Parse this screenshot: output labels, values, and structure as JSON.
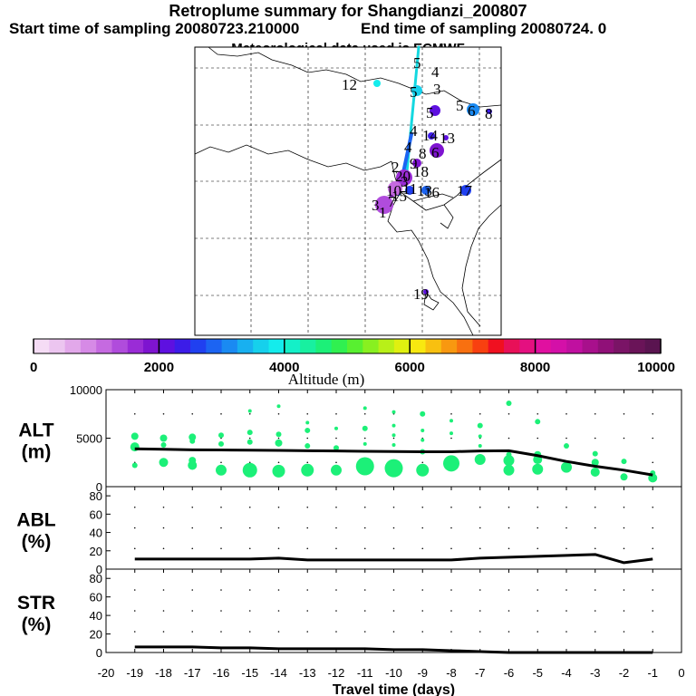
{
  "header": {
    "title": "Retroplume summary for Shangdianzi_200807",
    "start_label": "Start time of sampling 20080723.210000",
    "end_label": "End time of sampling 20080724.      0",
    "met_label": "Meteorological data used is ECMWF"
  },
  "colorbar": {
    "label": "Altitude (m)",
    "ticks": [
      "0",
      "2000",
      "4000",
      "6000",
      "8000",
      "10000"
    ],
    "colors": [
      "#f5dcf5",
      "#ecc5f0",
      "#e2a8ea",
      "#d68ae6",
      "#c56ae0",
      "#b04cdc",
      "#9a2cd6",
      "#7e14d0",
      "#5e10e0",
      "#3c1ce8",
      "#2040f0",
      "#1c64f2",
      "#1a8af2",
      "#18b0f0",
      "#16d0ec",
      "#14ecec",
      "#14f0c8",
      "#18f0a0",
      "#1cf078",
      "#30f050",
      "#58f030",
      "#88f020",
      "#b8f018",
      "#e0f010",
      "#f8e810",
      "#f8c010",
      "#f89810",
      "#f87010",
      "#f84010",
      "#f01020",
      "#e81058",
      "#e41080",
      "#e010a0",
      "#d410a8",
      "#c010a0",
      "#a8108c",
      "#901078",
      "#7a1466",
      "#6a1458",
      "#5a1450"
    ]
  },
  "map": {
    "labels": [
      "12",
      "5",
      "4",
      "5",
      "3",
      "5",
      "6",
      "8",
      "5",
      "4",
      "14",
      "13",
      "4",
      "8",
      "6",
      "9",
      "2",
      "20",
      "18",
      "3",
      "17",
      "10",
      "11",
      "13",
      "15",
      "16",
      "7",
      "1",
      "3",
      "19"
    ]
  },
  "chart_data": [
    {
      "type": "line",
      "name": "ALT",
      "ylabel": "ALT\n(m)",
      "title_lines": [
        "ALT",
        "(m)"
      ],
      "x": [
        -19,
        -18,
        -17,
        -16,
        -15,
        -14,
        -13,
        -12,
        -11,
        -10,
        -9,
        -8,
        -7,
        -6,
        -5,
        -4,
        -3,
        -2,
        -1
      ],
      "values": [
        3900,
        3850,
        3800,
        3780,
        3760,
        3740,
        3700,
        3680,
        3650,
        3620,
        3600,
        3600,
        3680,
        3700,
        3200,
        2600,
        2100,
        1700,
        1200
      ],
      "ylim": [
        0,
        10000
      ],
      "yticks": [
        "0",
        "5000",
        "10000"
      ],
      "scatter": [
        {
          "x": -19,
          "y": 5200,
          "r": 4
        },
        {
          "x": -19,
          "y": 4100,
          "r": 5
        },
        {
          "x": -19,
          "y": 2200,
          "r": 3
        },
        {
          "x": -18,
          "y": 5000,
          "r": 4
        },
        {
          "x": -18,
          "y": 4300,
          "r": 3
        },
        {
          "x": -18,
          "y": 2500,
          "r": 5
        },
        {
          "x": -17,
          "y": 5100,
          "r": 4
        },
        {
          "x": -17,
          "y": 4700,
          "r": 3
        },
        {
          "x": -17,
          "y": 2700,
          "r": 4
        },
        {
          "x": -17,
          "y": 2200,
          "r": 5
        },
        {
          "x": -16,
          "y": 5300,
          "r": 3
        },
        {
          "x": -16,
          "y": 4400,
          "r": 3
        },
        {
          "x": -16,
          "y": 1700,
          "r": 6
        },
        {
          "x": -15,
          "y": 7800,
          "r": 2
        },
        {
          "x": -15,
          "y": 5600,
          "r": 3
        },
        {
          "x": -15,
          "y": 4600,
          "r": 3
        },
        {
          "x": -15,
          "y": 1700,
          "r": 8
        },
        {
          "x": -14,
          "y": 8300,
          "r": 2
        },
        {
          "x": -14,
          "y": 5400,
          "r": 3
        },
        {
          "x": -14,
          "y": 4500,
          "r": 4
        },
        {
          "x": -14,
          "y": 1600,
          "r": 7
        },
        {
          "x": -13,
          "y": 6600,
          "r": 2
        },
        {
          "x": -13,
          "y": 5800,
          "r": 3
        },
        {
          "x": -13,
          "y": 4200,
          "r": 3
        },
        {
          "x": -13,
          "y": 1700,
          "r": 7
        },
        {
          "x": -12,
          "y": 6000,
          "r": 2
        },
        {
          "x": -12,
          "y": 4000,
          "r": 3
        },
        {
          "x": -12,
          "y": 1700,
          "r": 6
        },
        {
          "x": -11,
          "y": 8100,
          "r": 2
        },
        {
          "x": -11,
          "y": 6000,
          "r": 3
        },
        {
          "x": -11,
          "y": 4400,
          "r": 2
        },
        {
          "x": -11,
          "y": 2100,
          "r": 10
        },
        {
          "x": -10,
          "y": 7700,
          "r": 2
        },
        {
          "x": -10,
          "y": 6300,
          "r": 2
        },
        {
          "x": -10,
          "y": 5300,
          "r": 2
        },
        {
          "x": -10,
          "y": 4300,
          "r": 2
        },
        {
          "x": -10,
          "y": 1900,
          "r": 10
        },
        {
          "x": -9,
          "y": 7500,
          "r": 3
        },
        {
          "x": -9,
          "y": 5800,
          "r": 2
        },
        {
          "x": -9,
          "y": 4800,
          "r": 2
        },
        {
          "x": -9,
          "y": 3600,
          "r": 3
        },
        {
          "x": -9,
          "y": 1700,
          "r": 7
        },
        {
          "x": -8,
          "y": 6800,
          "r": 2
        },
        {
          "x": -8,
          "y": 5500,
          "r": 2
        },
        {
          "x": -8,
          "y": 2400,
          "r": 9
        },
        {
          "x": -7,
          "y": 6300,
          "r": 3
        },
        {
          "x": -7,
          "y": 5200,
          "r": 2
        },
        {
          "x": -7,
          "y": 4200,
          "r": 2
        },
        {
          "x": -7,
          "y": 2800,
          "r": 6
        },
        {
          "x": -6,
          "y": 8600,
          "r": 3
        },
        {
          "x": -6,
          "y": 3300,
          "r": 3
        },
        {
          "x": -6,
          "y": 2700,
          "r": 6
        },
        {
          "x": -6,
          "y": 1700,
          "r": 6
        },
        {
          "x": -5,
          "y": 6700,
          "r": 3
        },
        {
          "x": -5,
          "y": 3300,
          "r": 4
        },
        {
          "x": -5,
          "y": 2800,
          "r": 5
        },
        {
          "x": -5,
          "y": 1800,
          "r": 6
        },
        {
          "x": -4,
          "y": 4200,
          "r": 3
        },
        {
          "x": -4,
          "y": 2000,
          "r": 6
        },
        {
          "x": -3,
          "y": 3400,
          "r": 3
        },
        {
          "x": -3,
          "y": 2500,
          "r": 4
        },
        {
          "x": -3,
          "y": 1500,
          "r": 5
        },
        {
          "x": -2,
          "y": 2600,
          "r": 3
        },
        {
          "x": -2,
          "y": 1000,
          "r": 4
        },
        {
          "x": -1,
          "y": 1400,
          "r": 3
        },
        {
          "x": -1,
          "y": 900,
          "r": 5
        }
      ]
    },
    {
      "type": "line",
      "name": "ABL",
      "title_lines": [
        "ABL",
        "(%)"
      ],
      "x": [
        -19,
        -18,
        -17,
        -16,
        -15,
        -14,
        -13,
        -12,
        -11,
        -10,
        -9,
        -8,
        -7,
        -6,
        -5,
        -4,
        -3,
        -2,
        -1
      ],
      "values": [
        11,
        11,
        11,
        11,
        11,
        12,
        10,
        10,
        10,
        10,
        10,
        10,
        12,
        13,
        14,
        15,
        16,
        7,
        11
      ],
      "ylim": [
        0,
        90
      ],
      "yticks": [
        "0",
        "20",
        "40",
        "60",
        "80"
      ]
    },
    {
      "type": "line",
      "name": "STR",
      "title_lines": [
        "STR",
        "(%)"
      ],
      "x": [
        -19,
        -18,
        -17,
        -16,
        -15,
        -14,
        -13,
        -12,
        -11,
        -10,
        -9,
        -8,
        -7,
        -6,
        -5,
        -4,
        -3,
        -2,
        -1
      ],
      "values": [
        6,
        6,
        6,
        5,
        5,
        4,
        4,
        4,
        4,
        3,
        3,
        2,
        1,
        0,
        0,
        0,
        0,
        0,
        0
      ],
      "ylim": [
        0,
        90
      ],
      "yticks": [
        "0",
        "20",
        "40",
        "60",
        "80"
      ],
      "xlabel": "Travel time (days)",
      "xticks": [
        "-20",
        "-19",
        "-18",
        "-17",
        "-16",
        "-15",
        "-14",
        "-13",
        "-12",
        "-11",
        "-10",
        "-9",
        "-8",
        "-7",
        "-6",
        "-5",
        "-4",
        "-3",
        "-2",
        "-1",
        "0"
      ]
    }
  ]
}
